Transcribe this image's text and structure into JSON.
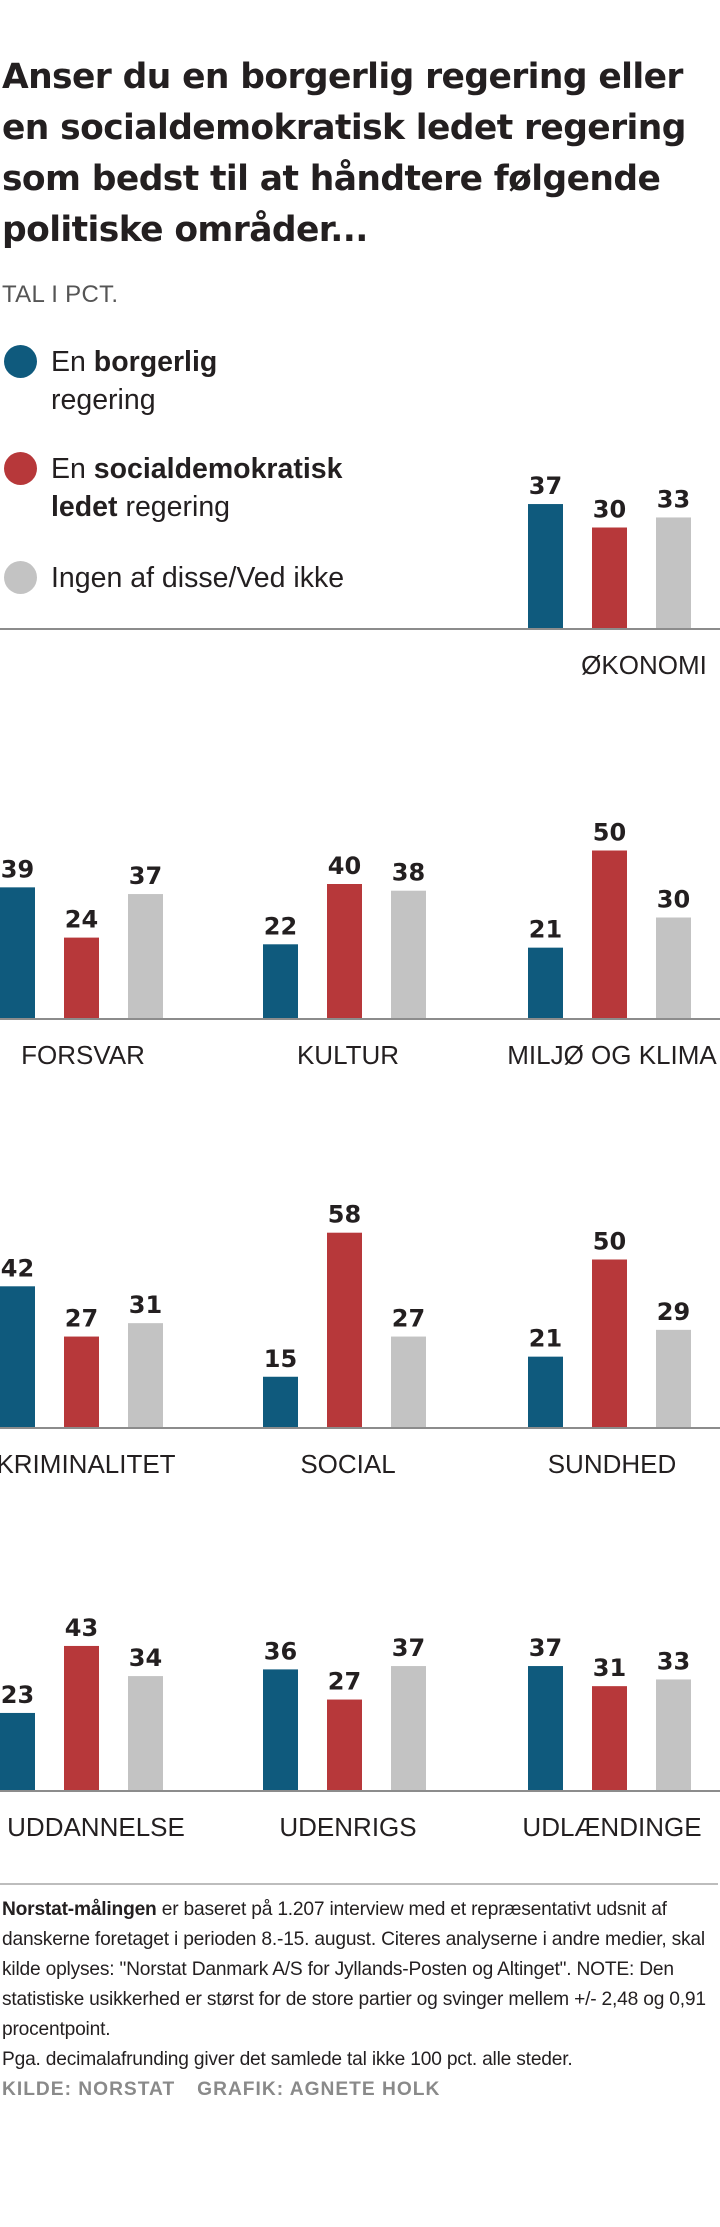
{
  "title": "Anser du en borgerlig regering eller en socialdemokratisk ledet regering som bedst til at håndtere følgende politiske områder...",
  "subtitle": "TAL I PCT.",
  "legend": {
    "borgerlig": {
      "pre": "En ",
      "bold": "borgerlig",
      "post": " regering",
      "color": "#0f5a7d"
    },
    "socialdemokratisk": {
      "pre": "En ",
      "bold": "socialdemokratisk ledet",
      "post": " regering",
      "color": "#b7383a"
    },
    "ingen": {
      "pre": "",
      "bold": "",
      "post": "Ingen af disse/Ved ikke",
      "color": "#c3c3c3"
    }
  },
  "chart_data": {
    "type": "bar",
    "title": "Anser du en borgerlig regering eller en socialdemokratisk ledet regering som bedst til at håndtere følgende politiske områder...",
    "ylabel": "TAL I PCT.",
    "series": [
      {
        "name": "En borgerlig regering",
        "color": "#0f5a7d"
      },
      {
        "name": "En socialdemokratisk ledet regering",
        "color": "#b7383a"
      },
      {
        "name": "Ingen af disse/Ved ikke",
        "color": "#c3c3c3"
      }
    ],
    "categories": [
      "ØKONOMI",
      "FORSVAR",
      "KULTUR",
      "MILJØ OG KLIMA",
      "KRIMINALITET",
      "SOCIAL",
      "SUNDHED",
      "UDDANNELSE",
      "UDENRIGS",
      "UDLÆNDINGE"
    ],
    "values": [
      [
        37,
        30,
        33
      ],
      [
        39,
        24,
        37
      ],
      [
        22,
        40,
        38
      ],
      [
        21,
        50,
        30
      ],
      [
        42,
        27,
        31
      ],
      [
        15,
        58,
        27
      ],
      [
        21,
        50,
        29
      ],
      [
        23,
        43,
        34
      ],
      [
        36,
        27,
        37
      ],
      [
        37,
        31,
        33
      ]
    ],
    "grid": false,
    "legend_position": "top-left"
  },
  "footer": {
    "lead_bold": "Norstat-målingen",
    "text": " er baseret på 1.207 interview med et repræsentativt udsnit af danskerne foretaget i perioden 8.-15. august. Citeres analyserne i andre medier, skal kilde oplyses: \"Norstat Danmark A/S for Jyllands-Posten og Altinget\". NOTE: Den statistiske usikkerhed er størst for de store partier og svinger mellem  +/- 2,48 og 0,91 procentpoint.",
    "rounding": "Pga. decimalafrunding giver det samlede tal ikke 100 pct. alle steder.",
    "source": "KILDE: NORSTAT",
    "graphic": "GRAFIK: AGNETE HOLK"
  }
}
